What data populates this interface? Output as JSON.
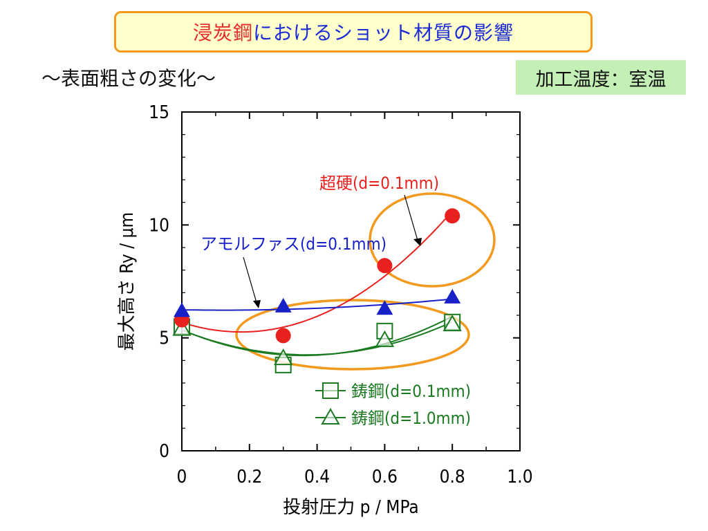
{
  "header": {
    "title_part1": "浸炭鋼",
    "title_part2": "におけるショット材質の影響",
    "subtitle": "～表面粗さの変化～",
    "condition": "加工温度：室温"
  },
  "colors": {
    "carbide": "#e8211f",
    "amorphous": "#1820c8",
    "steel": "#197a1f",
    "highlight": "#f39a1e",
    "title_red": "#e52a2a",
    "title_blue": "#1a2bd6"
  },
  "chart_data": {
    "type": "line",
    "xlabel": "投射圧力 p / MPa",
    "ylabel": "最大高さ Ry / μm",
    "xlim": [
      0,
      1.0
    ],
    "ylim": [
      0,
      15
    ],
    "x_ticks": [
      0,
      0.2,
      0.4,
      0.6,
      0.8,
      1.0
    ],
    "x_tick_labels": [
      "0",
      "0.2",
      "0.4",
      "0.6",
      "0.8",
      "1.0"
    ],
    "y_ticks": [
      0,
      5,
      10,
      15
    ],
    "y_tick_labels": [
      "0",
      "5",
      "10",
      "15"
    ],
    "grid": false,
    "series": [
      {
        "name": "超硬(d=0.1mm)",
        "color": "#e8211f",
        "marker": "circle",
        "x": [
          0,
          0.3,
          0.6,
          0.8
        ],
        "y": [
          5.8,
          5.1,
          8.2,
          10.4
        ]
      },
      {
        "name": "アモルファス(d=0.1mm)",
        "color": "#1820c8",
        "marker": "triangle-filled",
        "x": [
          0,
          0.3,
          0.6,
          0.8
        ],
        "y": [
          6.2,
          6.4,
          6.3,
          6.8
        ]
      },
      {
        "name": "鋳鋼(d=0.1mm)",
        "color": "#197a1f",
        "marker": "square-open",
        "x": [
          0,
          0.3,
          0.6,
          0.8
        ],
        "y": [
          5.5,
          3.8,
          5.3,
          5.7
        ]
      },
      {
        "name": "鋳鋼(d=1.0mm)",
        "color": "#197a1f",
        "marker": "triangle-open",
        "x": [
          0,
          0.3,
          0.6,
          0.8
        ],
        "y": [
          5.4,
          4.1,
          4.9,
          5.6
        ]
      }
    ],
    "annotations": [
      "超硬(d=0.1mm)",
      "アモルファス(d=0.1mm)"
    ],
    "legend": {
      "placement": "bottom-right",
      "entries": [
        "鋳鋼(d=0.1mm)",
        "鋳鋼(d=1.0mm)"
      ]
    }
  }
}
